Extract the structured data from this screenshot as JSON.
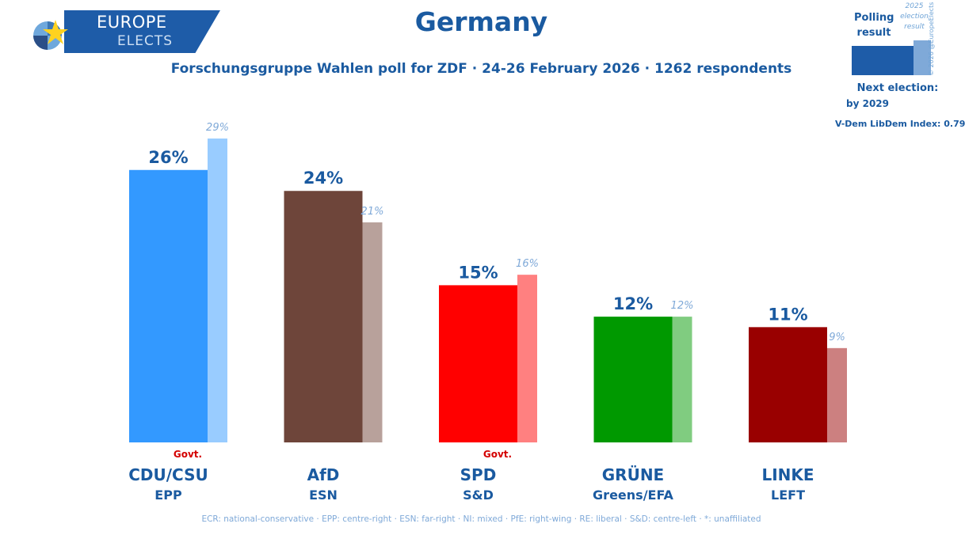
{
  "logo": {
    "line1": "EUROPE",
    "line2": "ELECTS"
  },
  "header": {
    "title": "Germany",
    "subtitle": "Forschungsgruppe Wahlen poll for ZDF · 24-26 February 2026 · 1262 respondents"
  },
  "legend": {
    "polling_result_label": "Polling result",
    "prev_result_label": "2025 election result",
    "copyright": "© 2026 @EuropeElects",
    "next_election_label": "Next election:",
    "next_election_value": "by 2029",
    "vdem": "V-Dem LibDem Index: 0.79"
  },
  "chart_data": {
    "type": "bar",
    "title": "Germany",
    "categories": [
      "CDU/CSU",
      "AfD",
      "SPD",
      "GRÜNE",
      "LINKE"
    ],
    "groups": [
      "EPP",
      "ESN",
      "S&D",
      "Greens/EFA",
      "LEFT"
    ],
    "govt": [
      true,
      false,
      true,
      false,
      false
    ],
    "govt_label": "Govt.",
    "series": [
      {
        "name": "Polling result",
        "values": [
          26,
          24,
          15,
          12,
          11
        ]
      },
      {
        "name": "2025 election result",
        "values": [
          29,
          21,
          16,
          12,
          9
        ]
      }
    ],
    "value_labels": [
      "26%",
      "24%",
      "15%",
      "12%",
      "11%"
    ],
    "prev_labels": [
      "29%",
      "21%",
      "16%",
      "12%",
      "9%"
    ],
    "colors": [
      "#3399ff",
      "#6e453a",
      "#ff0000",
      "#009900",
      "#990000"
    ],
    "prev_colors": [
      "#99ccff",
      "#b8a19b",
      "#ff8080",
      "#80cc80",
      "#cc8080"
    ],
    "ylim": [
      0,
      29
    ]
  },
  "footer": {
    "text": "ECR: national-conservative · EPP: centre-right · ESN: far-right · NI: mixed · PfE: right-wing · RE: liberal · S&D: centre-left · *: unaffiliated"
  }
}
